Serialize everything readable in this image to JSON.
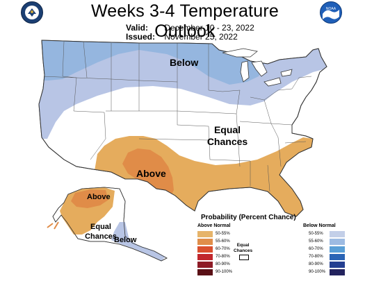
{
  "header": {
    "title": "Weeks 3-4 Temperature Outlook",
    "valid_label": "Valid:",
    "valid_value": "December 10 - 23, 2022",
    "issued_label": "Issued:",
    "issued_value": "November 25, 2022",
    "left_logo": "doc-seal-icon",
    "right_logo": "noaa-logo-icon",
    "noaa_text": "NOAA"
  },
  "map": {
    "labels": {
      "below_main": "Below",
      "equal_main_1": "Equal",
      "equal_main_2": "Chances",
      "above_main": "Above",
      "above_alaska": "Above",
      "equal_alaska_1": "Equal",
      "equal_alaska_2": "Chances",
      "below_alaska": "Below"
    },
    "regions": [
      {
        "name": "Below",
        "category": "below",
        "probability": "50-55%",
        "color": "#b8c5e5"
      },
      {
        "name": "Below",
        "category": "below",
        "probability": "55-60%",
        "color": "#95b6df"
      },
      {
        "name": "Above",
        "category": "above",
        "probability": "50-55%",
        "color": "#e5ac5d"
      },
      {
        "name": "Above",
        "category": "above",
        "probability": "55-60%",
        "color": "#e08c48"
      }
    ]
  },
  "legend": {
    "title": "Probability (Percent Chance)",
    "above_header": "Above Normal",
    "below_header": "Below Normal",
    "equal_label_1": "Equal",
    "equal_label_2": "Chances",
    "rows": [
      {
        "range": "50-55%",
        "above_color": "#e6b46a",
        "below_color": "#c3cfe8"
      },
      {
        "range": "55-60%",
        "above_color": "#e08e4a",
        "below_color": "#9dbbe2"
      },
      {
        "range": "60-70%",
        "above_color": "#d9502e",
        "below_color": "#5a9fd6"
      },
      {
        "range": "70-80%",
        "above_color": "#c1272d",
        "below_color": "#2a64b5"
      },
      {
        "range": "80-90%",
        "above_color": "#8e1b26",
        "below_color": "#243f91"
      },
      {
        "range": "90-100%",
        "above_color": "#5a1016",
        "below_color": "#23235e"
      }
    ]
  }
}
